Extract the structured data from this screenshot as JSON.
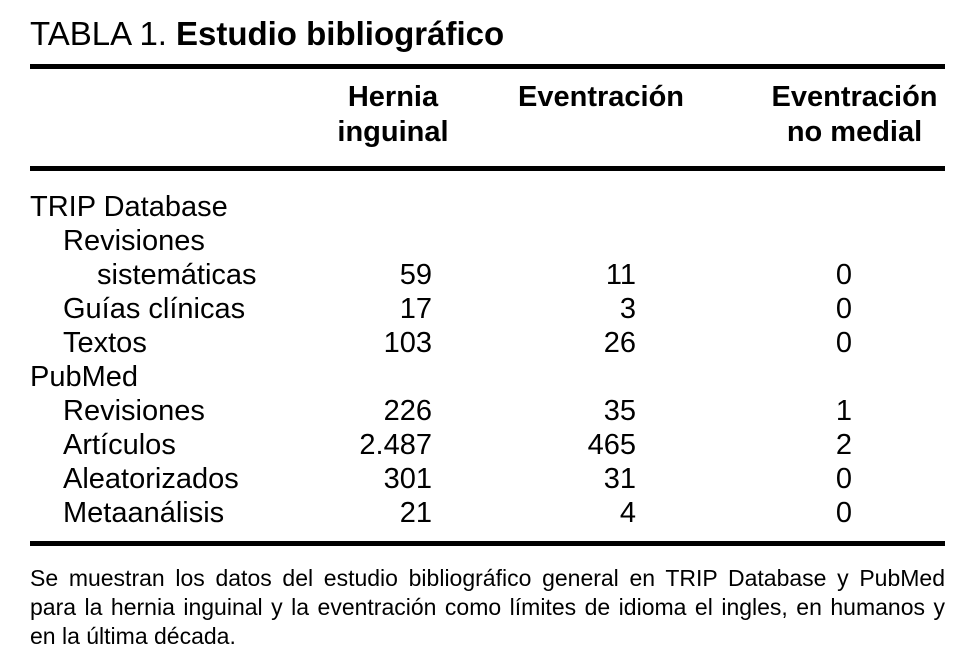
{
  "title": {
    "label": "TABLA 1.",
    "heading": "Estudio bibliográfico"
  },
  "table": {
    "columns": [
      {
        "line1": "Hernia",
        "line2": "inguinal"
      },
      {
        "line1": "Eventración",
        "line2": ""
      },
      {
        "line1": "Eventración",
        "line2": "no medial"
      }
    ],
    "rows": [
      {
        "label": "TRIP Database",
        "indent": 0,
        "values": [
          "",
          "",
          ""
        ]
      },
      {
        "label": "Revisiones",
        "indent": 1,
        "values": [
          "",
          "",
          ""
        ]
      },
      {
        "label": "sistemáticas",
        "indent": 2,
        "values": [
          "59",
          "11",
          "0"
        ]
      },
      {
        "label": "Guías clínicas",
        "indent": 1,
        "values": [
          "17",
          "3",
          "0"
        ]
      },
      {
        "label": "Textos",
        "indent": 1,
        "values": [
          "103",
          "26",
          "0"
        ]
      },
      {
        "label": "PubMed",
        "indent": 0,
        "values": [
          "",
          "",
          ""
        ]
      },
      {
        "label": "Revisiones",
        "indent": 1,
        "values": [
          "226",
          "35",
          "1"
        ]
      },
      {
        "label": "Artículos",
        "indent": 1,
        "values": [
          "2.487",
          "465",
          "2"
        ]
      },
      {
        "label": "Aleatorizados",
        "indent": 1,
        "values": [
          "301",
          "31",
          "0"
        ]
      },
      {
        "label": "Metaanálisis",
        "indent": 1,
        "values": [
          "21",
          "4",
          "0"
        ]
      }
    ]
  },
  "footnote": {
    "lines": [
      "Se muestran los datos del estudio bibliográfico general en TRIP Database y PubMed",
      "para la hernia inguinal y la eventración como límites de idioma el ingles, en humanos y",
      "en la última década."
    ]
  },
  "colors": {
    "ink": "#000000",
    "background": "#ffffff"
  }
}
